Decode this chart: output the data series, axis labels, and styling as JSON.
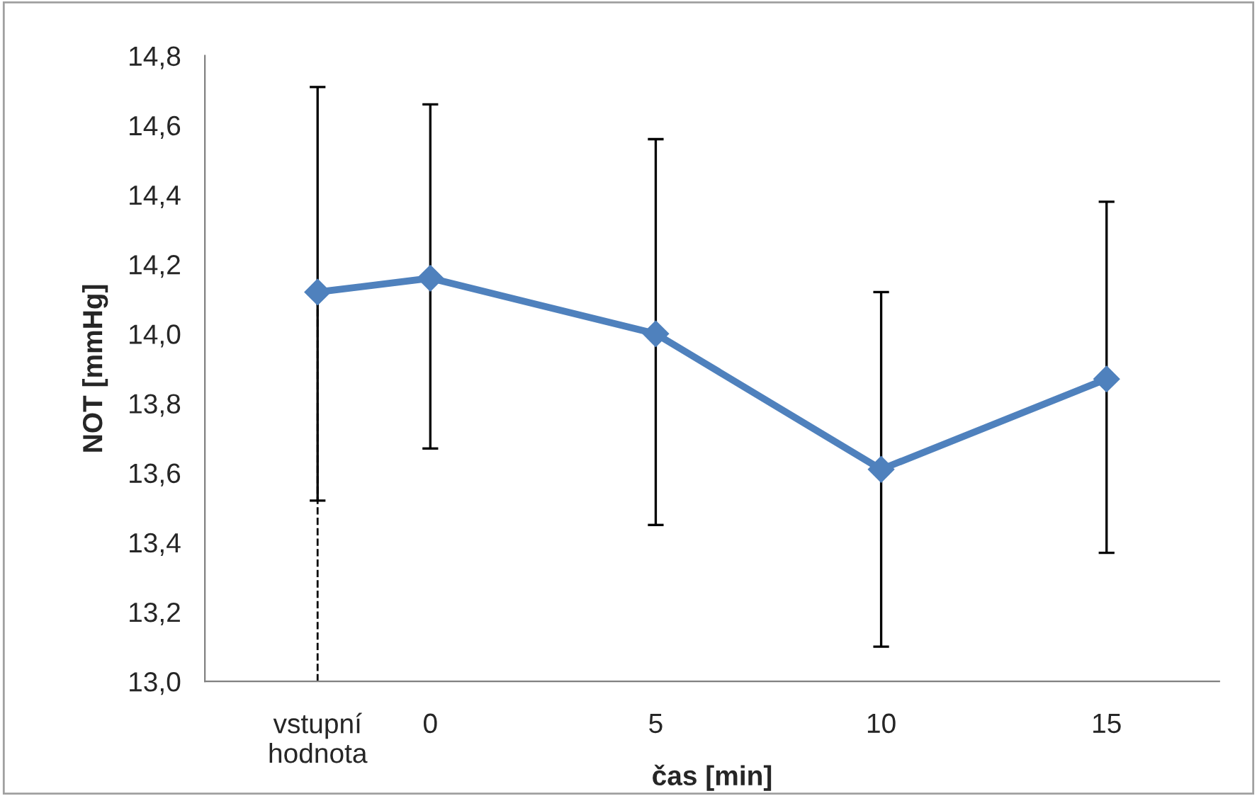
{
  "chart_data": {
    "type": "line",
    "xlabel": "čas [min]",
    "ylabel": "NOT [mmHg]",
    "x": [
      -2.5,
      0,
      5,
      10,
      15
    ],
    "series": [
      {
        "color": "#4f81bd",
        "values": [
          14.12,
          14.16,
          14.0,
          13.61,
          13.87
        ],
        "errors": [
          [
            13.52,
            14.71
          ],
          [
            13.67,
            14.66
          ],
          [
            13.45,
            14.56
          ],
          [
            13.1,
            14.12
          ],
          [
            13.37,
            14.38
          ]
        ]
      }
    ],
    "xlim": [
      -5,
      17.5
    ],
    "xticks": [
      {
        "value": -2.5,
        "label": "vstupní\nhodnota"
      },
      0,
      5,
      10,
      15
    ],
    "ylim": [
      13.0,
      14.8
    ],
    "yticks": [
      {
        "value": 13.0,
        "label": "13,0"
      },
      {
        "value": 13.2,
        "label": "13,2"
      },
      {
        "value": 13.4,
        "label": "13,4"
      },
      {
        "value": 13.6,
        "label": "13,6"
      },
      {
        "value": 13.8,
        "label": "13,8"
      },
      {
        "value": 14.0,
        "label": "14,0"
      },
      {
        "value": 14.2,
        "label": "14,2"
      },
      {
        "value": 14.4,
        "label": "14,4"
      },
      {
        "value": 14.6,
        "label": "14,6"
      },
      {
        "value": 14.8,
        "label": "14,8"
      }
    ],
    "ref_lines": [
      {
        "axis": "x",
        "value": -2.5,
        "color": "#000000",
        "line_style": "dashed"
      }
    ],
    "marker": "diamond",
    "line_style": "solid",
    "grid": false,
    "legend": false
  }
}
